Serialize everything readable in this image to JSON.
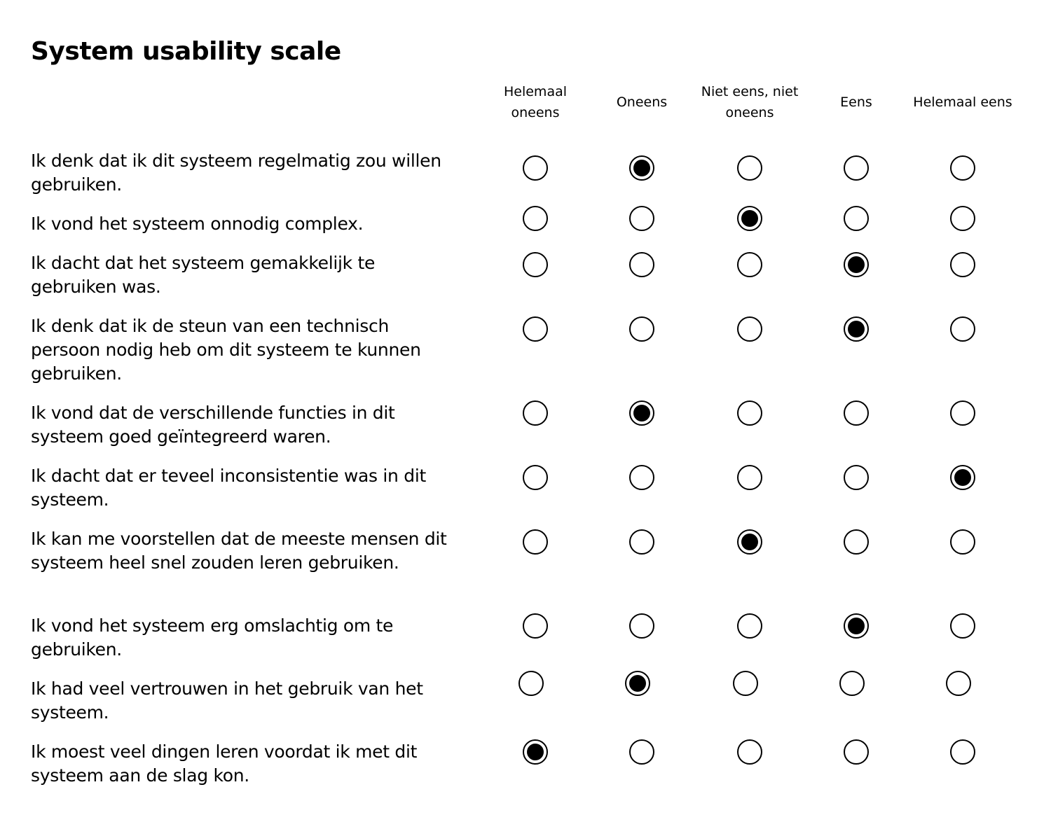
{
  "title": "System usability scale",
  "scale": {
    "options": [
      "Helemaal oneens",
      "Oneens",
      "Niet eens, niet oneens",
      "Eens",
      "Helemaal eens"
    ]
  },
  "questions": [
    {
      "text": "Ik denk dat ik dit systeem regelmatig zou willen gebruiken.",
      "selected": "Oneens"
    },
    {
      "text": "Ik vond het systeem onnodig complex.",
      "selected": "Niet eens, niet oneens"
    },
    {
      "text": "Ik dacht dat het systeem gemakkelijk te gebruiken was.",
      "selected": "Eens"
    },
    {
      "text": "Ik denk dat ik de steun van een technisch persoon nodig heb om dit systeem te kunnen gebruiken.",
      "selected": "Eens"
    },
    {
      "text": "Ik vond dat de verschillende functies in dit systeem goed geïntegreerd waren.",
      "selected": "Oneens"
    },
    {
      "text": "Ik dacht dat er teveel inconsistentie was in dit systeem.",
      "selected": "Helemaal eens"
    },
    {
      "text": "Ik kan me voorstellen dat de meeste mensen dit systeem heel snel zouden leren gebruiken.",
      "selected": "Niet eens, niet oneens"
    },
    {
      "text": "Ik vond het systeem erg omslachtig om te gebruiken.",
      "selected": "Eens"
    },
    {
      "text": "Ik had veel vertrouwen in het gebruik van het systeem.",
      "selected": "Oneens"
    },
    {
      "text": "Ik moest veel dingen leren voordat ik met dit systeem aan de slag kon.",
      "selected": "Helemaal oneens"
    }
  ]
}
